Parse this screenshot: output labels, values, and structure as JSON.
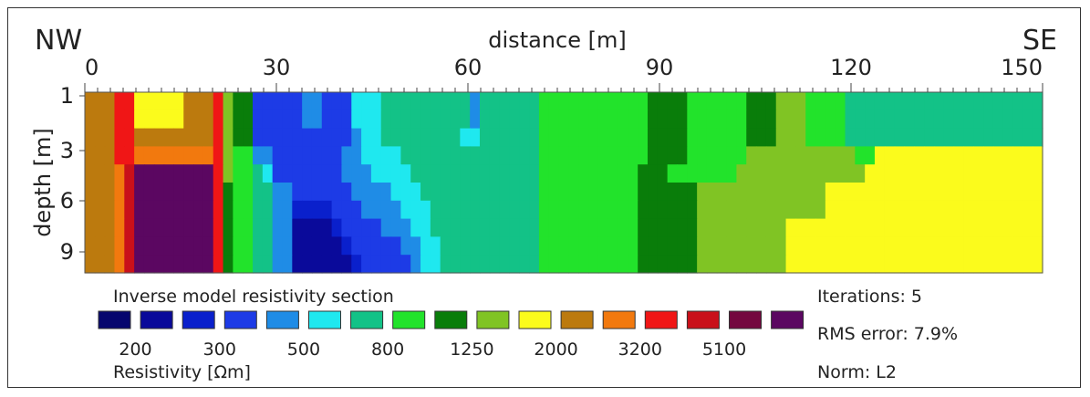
{
  "chart_data": {
    "type": "heatmap",
    "direction_left": "NW",
    "direction_right": "SE",
    "xlabel": "distance [m]",
    "ylabel": "depth [m]",
    "x_ticks": [
      0,
      30,
      60,
      90,
      120,
      150
    ],
    "y_ticks": [
      1,
      3,
      6,
      9
    ],
    "xlim": [
      0,
      150
    ],
    "ylim": [
      0,
      10
    ],
    "palette": [
      "#06066e",
      "#0a0a9a",
      "#0a20cc",
      "#1d3be6",
      "#1f8ce6",
      "#1fe8ef",
      "#13c287",
      "#22e32b",
      "#097d0a",
      "#80c424",
      "#fbfb1c",
      "#bc7a0e",
      "#f2790e",
      "#f01616",
      "#c9101a",
      "#74073f",
      "#5b0761"
    ],
    "grid": [
      [
        11,
        11,
        11,
        13,
        13,
        10,
        10,
        10,
        10,
        10,
        11,
        11,
        11,
        13,
        9,
        8,
        8,
        3,
        3,
        3,
        3,
        3,
        4,
        4,
        3,
        3,
        3,
        5,
        5,
        5,
        6,
        6,
        6,
        6,
        6,
        6,
        6,
        6,
        6,
        4,
        6,
        6,
        6,
        6,
        6,
        6,
        7,
        7,
        7,
        7,
        7,
        7,
        7,
        7,
        7,
        7,
        7,
        8,
        8,
        8,
        8,
        7,
        7,
        7,
        7,
        7,
        7,
        8,
        8,
        8,
        9,
        9,
        9,
        7,
        7,
        7,
        7,
        6,
        6,
        6,
        6,
        6,
        6,
        6,
        6,
        6,
        6,
        6,
        6,
        6,
        6,
        6,
        6,
        6,
        6,
        6,
        6
      ],
      [
        11,
        11,
        11,
        13,
        13,
        10,
        10,
        10,
        10,
        10,
        11,
        11,
        11,
        13,
        9,
        8,
        8,
        3,
        3,
        3,
        3,
        3,
        4,
        4,
        3,
        3,
        3,
        5,
        5,
        5,
        6,
        6,
        6,
        6,
        6,
        6,
        6,
        6,
        6,
        4,
        6,
        6,
        6,
        6,
        6,
        6,
        7,
        7,
        7,
        7,
        7,
        7,
        7,
        7,
        7,
        7,
        7,
        8,
        8,
        8,
        8,
        7,
        7,
        7,
        7,
        7,
        7,
        8,
        8,
        8,
        9,
        9,
        9,
        7,
        7,
        7,
        7,
        6,
        6,
        6,
        6,
        6,
        6,
        6,
        6,
        6,
        6,
        6,
        6,
        6,
        6,
        6,
        6,
        6,
        6,
        6,
        6
      ],
      [
        11,
        11,
        11,
        13,
        13,
        11,
        11,
        11,
        11,
        11,
        11,
        11,
        11,
        13,
        9,
        8,
        8,
        3,
        3,
        3,
        3,
        3,
        3,
        3,
        3,
        3,
        3,
        4,
        5,
        5,
        6,
        6,
        6,
        6,
        6,
        6,
        6,
        6,
        5,
        5,
        6,
        6,
        6,
        6,
        6,
        6,
        7,
        7,
        7,
        7,
        7,
        7,
        7,
        7,
        7,
        7,
        7,
        8,
        8,
        8,
        8,
        7,
        7,
        7,
        7,
        7,
        7,
        8,
        8,
        8,
        9,
        9,
        9,
        7,
        7,
        7,
        7,
        6,
        6,
        6,
        6,
        6,
        6,
        6,
        6,
        6,
        6,
        6,
        6,
        6,
        6,
        6,
        6,
        6,
        6,
        6,
        6
      ],
      [
        11,
        11,
        11,
        13,
        13,
        12,
        12,
        12,
        12,
        12,
        12,
        12,
        12,
        13,
        9,
        7,
        7,
        4,
        4,
        3,
        3,
        3,
        3,
        3,
        3,
        3,
        4,
        4,
        5,
        5,
        5,
        5,
        6,
        6,
        6,
        6,
        6,
        6,
        6,
        6,
        6,
        6,
        6,
        6,
        6,
        6,
        7,
        7,
        7,
        7,
        7,
        7,
        7,
        7,
        7,
        7,
        7,
        8,
        8,
        8,
        8,
        7,
        7,
        7,
        7,
        7,
        7,
        9,
        9,
        9,
        9,
        9,
        9,
        9,
        9,
        9,
        9,
        9,
        7,
        7,
        10,
        10,
        10,
        10,
        10,
        10,
        10,
        10,
        10,
        10,
        10,
        10,
        10,
        10,
        10,
        10,
        10
      ],
      [
        11,
        11,
        11,
        12,
        14,
        16,
        16,
        16,
        16,
        16,
        16,
        16,
        16,
        13,
        9,
        7,
        7,
        6,
        5,
        3,
        3,
        3,
        3,
        3,
        3,
        3,
        4,
        4,
        4,
        5,
        5,
        5,
        5,
        6,
        6,
        6,
        6,
        6,
        6,
        6,
        6,
        6,
        6,
        6,
        6,
        6,
        7,
        7,
        7,
        7,
        7,
        7,
        7,
        7,
        7,
        7,
        8,
        8,
        8,
        7,
        7,
        7,
        7,
        7,
        7,
        7,
        9,
        9,
        9,
        9,
        9,
        9,
        9,
        9,
        9,
        9,
        9,
        9,
        9,
        10,
        10,
        10,
        10,
        10,
        10,
        10,
        10,
        10,
        10,
        10,
        10,
        10,
        10,
        10,
        10,
        10,
        10
      ],
      [
        11,
        11,
        11,
        12,
        14,
        16,
        16,
        16,
        16,
        16,
        16,
        16,
        16,
        13,
        8,
        7,
        7,
        6,
        6,
        4,
        4,
        3,
        3,
        3,
        3,
        3,
        3,
        4,
        4,
        4,
        4,
        5,
        5,
        5,
        6,
        6,
        6,
        6,
        6,
        6,
        6,
        6,
        6,
        6,
        6,
        6,
        7,
        7,
        7,
        7,
        7,
        7,
        7,
        7,
        7,
        7,
        8,
        8,
        8,
        8,
        8,
        8,
        9,
        9,
        9,
        9,
        9,
        9,
        9,
        9,
        9,
        9,
        9,
        9,
        9,
        10,
        10,
        10,
        10,
        10,
        10,
        10,
        10,
        10,
        10,
        10,
        10,
        10,
        10,
        10,
        10,
        10,
        10,
        10,
        10,
        10,
        10
      ],
      [
        11,
        11,
        11,
        12,
        14,
        16,
        16,
        16,
        16,
        16,
        16,
        16,
        16,
        13,
        8,
        7,
        7,
        6,
        6,
        4,
        4,
        2,
        2,
        2,
        2,
        3,
        3,
        3,
        4,
        4,
        4,
        4,
        5,
        5,
        5,
        6,
        6,
        6,
        6,
        6,
        6,
        6,
        6,
        6,
        6,
        6,
        7,
        7,
        7,
        7,
        7,
        7,
        7,
        7,
        7,
        7,
        8,
        8,
        8,
        8,
        8,
        8,
        9,
        9,
        9,
        9,
        9,
        9,
        9,
        9,
        9,
        9,
        9,
        9,
        9,
        10,
        10,
        10,
        10,
        10,
        10,
        10,
        10,
        10,
        10,
        10,
        10,
        10,
        10,
        10,
        10,
        10,
        10,
        10,
        10,
        10,
        10
      ],
      [
        11,
        11,
        11,
        12,
        14,
        16,
        16,
        16,
        16,
        16,
        16,
        16,
        16,
        13,
        8,
        7,
        7,
        6,
        6,
        4,
        4,
        1,
        1,
        1,
        1,
        2,
        3,
        3,
        3,
        3,
        4,
        4,
        4,
        5,
        5,
        6,
        6,
        6,
        6,
        6,
        6,
        6,
        6,
        6,
        6,
        6,
        7,
        7,
        7,
        7,
        7,
        7,
        7,
        7,
        7,
        7,
        8,
        8,
        8,
        8,
        8,
        8,
        9,
        9,
        9,
        9,
        9,
        9,
        9,
        9,
        9,
        10,
        10,
        10,
        10,
        10,
        10,
        10,
        10,
        10,
        10,
        10,
        10,
        10,
        10,
        10,
        10,
        10,
        10,
        10,
        10,
        10,
        10,
        10,
        10,
        10,
        10
      ],
      [
        11,
        11,
        11,
        12,
        14,
        16,
        16,
        16,
        16,
        16,
        16,
        16,
        16,
        13,
        8,
        7,
        7,
        6,
        6,
        4,
        4,
        1,
        1,
        1,
        1,
        1,
        2,
        3,
        3,
        3,
        3,
        3,
        4,
        4,
        5,
        5,
        6,
        6,
        6,
        6,
        6,
        6,
        6,
        6,
        6,
        6,
        7,
        7,
        7,
        7,
        7,
        7,
        7,
        7,
        7,
        7,
        8,
        8,
        8,
        8,
        8,
        8,
        9,
        9,
        9,
        9,
        9,
        9,
        9,
        9,
        9,
        10,
        10,
        10,
        10,
        10,
        10,
        10,
        10,
        10,
        10,
        10,
        10,
        10,
        10,
        10,
        10,
        10,
        10,
        10,
        10,
        10,
        10,
        10,
        10,
        10,
        10
      ],
      [
        11,
        11,
        11,
        12,
        14,
        16,
        16,
        16,
        16,
        16,
        16,
        16,
        16,
        13,
        8,
        7,
        7,
        6,
        6,
        4,
        4,
        1,
        1,
        1,
        1,
        1,
        1,
        2,
        3,
        3,
        3,
        3,
        3,
        4,
        5,
        5,
        6,
        6,
        6,
        6,
        6,
        6,
        6,
        6,
        6,
        6,
        7,
        7,
        7,
        7,
        7,
        7,
        7,
        7,
        7,
        7,
        8,
        8,
        8,
        8,
        8,
        8,
        9,
        9,
        9,
        9,
        9,
        9,
        9,
        9,
        9,
        10,
        10,
        10,
        10,
        10,
        10,
        10,
        10,
        10,
        10,
        10,
        10,
        10,
        10,
        10,
        10,
        10,
        10,
        10,
        10,
        10,
        10,
        10,
        10,
        10,
        10
      ]
    ],
    "legend": {
      "title": "Inverse model resistivity section",
      "labels": [
        "200",
        "300",
        "500",
        "800",
        "1250",
        "2000",
        "3200",
        "5100"
      ],
      "unit_label": "Resistivity [Ωm]"
    },
    "info": {
      "iterations": "Iterations: 5",
      "rms": "RMS error: 7.9%",
      "norm": "Norm: L2"
    }
  }
}
